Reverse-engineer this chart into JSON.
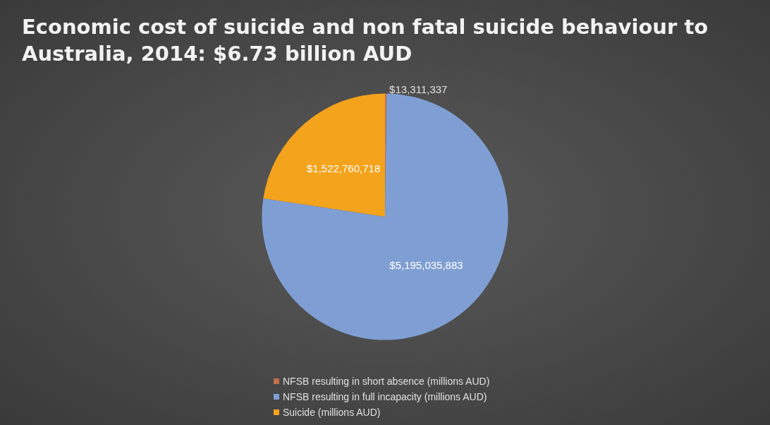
{
  "chart_data": {
    "type": "pie",
    "title": "Economic cost of suicide and non fatal suicide behaviour to Australia, 2014: $6.73 billion AUD",
    "categories": [
      "NFSB resulting in short absence (millions AUD)",
      "NFSB resulting in full incapacity (millions AUD)",
      "Suicide (millions AUD)"
    ],
    "values": [
      13311337,
      5195035883,
      1522760718
    ],
    "colors": [
      "#c0704a",
      "#7f9fd4",
      "#f4a31c"
    ],
    "value_labels": [
      "$13,311,337",
      "$5,195,035,883",
      "$1,522,760,718"
    ],
    "legend": "bottom"
  }
}
